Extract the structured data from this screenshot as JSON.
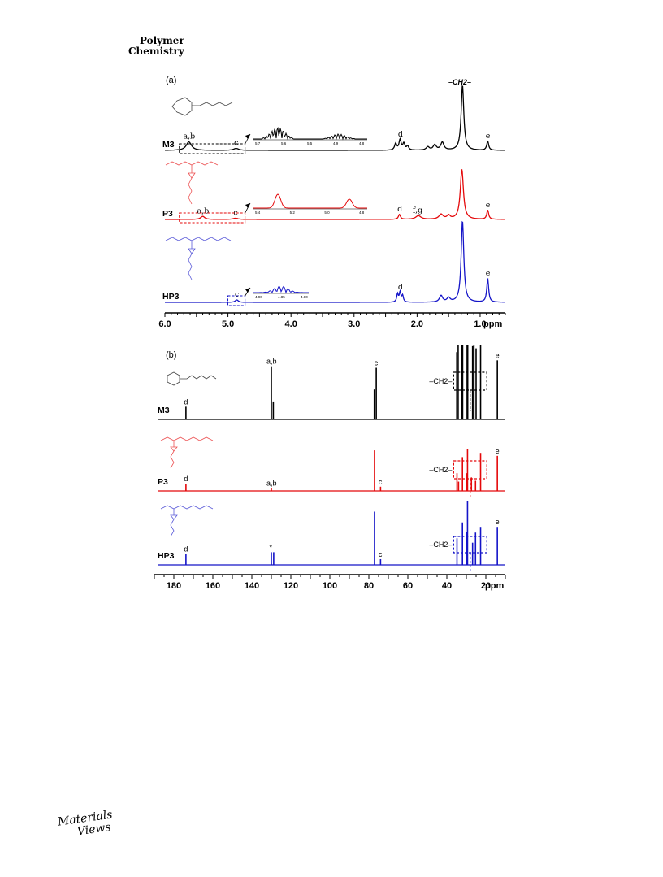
{
  "header": {
    "journal_line1": "Polymer",
    "journal_line2": "Chemistry"
  },
  "footer": {
    "logo_line1": "Materials",
    "logo_line2": "Views"
  },
  "colors": {
    "M3": "#000000",
    "P3": "#e4080a",
    "HP3": "#1414c8"
  },
  "chart_data": [
    {
      "panel": "(a)",
      "type": "line",
      "subtype": "1H NMR spectra",
      "x_axis": {
        "unit_label": "ppm",
        "range": [
          6.0,
          0.6
        ],
        "ticks": [
          "6.0",
          "5.0",
          "4.0",
          "3.0",
          "2.0",
          "1.0"
        ],
        "tick_values": [
          6.0,
          5.0,
          4.0,
          3.0,
          2.0,
          1.0
        ]
      },
      "top_label": "–CH2–",
      "series": [
        {
          "name": "M3",
          "color": "#000000",
          "peaks": [
            {
              "x": 5.62,
              "h": 0.13,
              "w": 0.05,
              "label": "a,b"
            },
            {
              "x": 4.87,
              "h": 0.03,
              "w": 0.05,
              "label": "c"
            },
            {
              "x": 2.34,
              "h": 0.1,
              "w": 0.02
            },
            {
              "x": 2.27,
              "h": 0.16,
              "w": 0.02,
              "label": "d"
            },
            {
              "x": 2.21,
              "h": 0.1,
              "w": 0.02
            },
            {
              "x": 2.15,
              "h": 0.06,
              "w": 0.02
            },
            {
              "x": 1.83,
              "h": 0.05,
              "w": 0.03
            },
            {
              "x": 1.72,
              "h": 0.08,
              "w": 0.03
            },
            {
              "x": 1.6,
              "h": 0.12,
              "w": 0.03
            },
            {
              "x": 1.28,
              "h": 1.0,
              "w": 0.025
            },
            {
              "x": 0.88,
              "h": 0.14,
              "w": 0.018,
              "label": "e"
            }
          ],
          "inset": {
            "ticks": [
              "5.7",
              "5.6",
              "5.5",
              "4.9",
              "4.8"
            ]
          }
        },
        {
          "name": "P3",
          "color": "#e4080a",
          "peaks": [
            {
              "x": 5.4,
              "h": 0.05,
              "w": 0.04,
              "label": "a,b"
            },
            {
              "x": 4.88,
              "h": 0.02,
              "w": 0.05,
              "label": "c"
            },
            {
              "x": 2.28,
              "h": 0.08,
              "w": 0.02,
              "label": "d"
            },
            {
              "x": 1.98,
              "h": 0.06,
              "w": 0.05,
              "label": "f,g"
            },
            {
              "x": 1.62,
              "h": 0.08,
              "w": 0.04
            },
            {
              "x": 1.5,
              "h": 0.06,
              "w": 0.03
            },
            {
              "x": 1.29,
              "h": 0.82,
              "w": 0.03
            },
            {
              "x": 0.88,
              "h": 0.15,
              "w": 0.018,
              "label": "e"
            }
          ],
          "inset": {
            "ticks": [
              "5.4",
              "5.2",
              "5.0",
              "4.8"
            ]
          }
        },
        {
          "name": "HP3",
          "color": "#1414c8",
          "peaks": [
            {
              "x": 4.86,
              "h": 0.03,
              "w": 0.03,
              "label": "c"
            },
            {
              "x": 2.31,
              "h": 0.1,
              "w": 0.015
            },
            {
              "x": 2.27,
              "h": 0.12,
              "w": 0.015,
              "label": "d"
            },
            {
              "x": 2.23,
              "h": 0.08,
              "w": 0.015
            },
            {
              "x": 1.62,
              "h": 0.08,
              "w": 0.03
            },
            {
              "x": 1.5,
              "h": 0.05,
              "w": 0.03
            },
            {
              "x": 1.28,
              "h": 1.0,
              "w": 0.025
            },
            {
              "x": 0.88,
              "h": 0.29,
              "w": 0.018,
              "label": "e"
            }
          ],
          "inset": {
            "ticks": [
              "4.90",
              "4.85",
              "4.80"
            ]
          }
        }
      ]
    },
    {
      "panel": "(b)",
      "type": "line",
      "subtype": "13C NMR spectra",
      "x_axis": {
        "unit_label": "ppm",
        "range": [
          190,
          10
        ],
        "ticks": [
          "180",
          "160",
          "140",
          "120",
          "100",
          "80",
          "60",
          "40",
          "20"
        ],
        "tick_values": [
          180,
          160,
          140,
          120,
          100,
          80,
          60,
          40,
          20
        ]
      },
      "ch2_label": "–CH2–",
      "series": [
        {
          "name": "M3",
          "color": "#000000",
          "peaks": [
            {
              "x": 173.8,
              "h": 0.17,
              "label": "d"
            },
            {
              "x": 130.0,
              "h": 0.71,
              "label": "a,b"
            },
            {
              "x": 129.0,
              "h": 0.24
            },
            {
              "x": 77.2,
              "h": 0.4
            },
            {
              "x": 76.2,
              "h": 0.69,
              "label": "c"
            },
            {
              "x": 34.9,
              "h": 0.9
            },
            {
              "x": 34.2,
              "h": 1.0
            },
            {
              "x": 32.4,
              "h": 1.0
            },
            {
              "x": 31.9,
              "h": 1.0
            },
            {
              "x": 30.0,
              "h": 1.0
            },
            {
              "x": 29.3,
              "h": 1.0
            },
            {
              "x": 26.8,
              "h": 0.98
            },
            {
              "x": 26.1,
              "h": 1.0
            },
            {
              "x": 25.0,
              "h": 0.95
            },
            {
              "x": 22.7,
              "h": 1.0
            },
            {
              "x": 14.1,
              "h": 0.79,
              "label": "e"
            }
          ]
        },
        {
          "name": "P3",
          "color": "#e4080a",
          "peaks": [
            {
              "x": 173.8,
              "h": 0.17,
              "label": "d"
            },
            {
              "x": 130.0,
              "h": 0.07,
              "label": "a,b"
            },
            {
              "x": 77.1,
              "h": 0.96
            },
            {
              "x": 74.0,
              "h": 0.1,
              "label": "c"
            },
            {
              "x": 34.8,
              "h": 0.42
            },
            {
              "x": 34.0,
              "h": 0.22
            },
            {
              "x": 32.0,
              "h": 0.8
            },
            {
              "x": 29.9,
              "h": 0.42
            },
            {
              "x": 29.4,
              "h": 1.0
            },
            {
              "x": 27.4,
              "h": 0.32
            },
            {
              "x": 25.3,
              "h": 0.24
            },
            {
              "x": 22.7,
              "h": 0.9
            },
            {
              "x": 14.1,
              "h": 0.83,
              "label": "e"
            }
          ]
        },
        {
          "name": "HP3",
          "color": "#1414c8",
          "peaks": [
            {
              "x": 173.8,
              "h": 0.17,
              "label": "d"
            },
            {
              "x": 130.0,
              "h": 0.2,
              "label": "*"
            },
            {
              "x": 128.8,
              "h": 0.2
            },
            {
              "x": 77.1,
              "h": 0.84
            },
            {
              "x": 74.0,
              "h": 0.09,
              "label": "c"
            },
            {
              "x": 34.8,
              "h": 0.42
            },
            {
              "x": 32.0,
              "h": 0.67
            },
            {
              "x": 29.8,
              "h": 0.52
            },
            {
              "x": 29.4,
              "h": 1.0
            },
            {
              "x": 26.8,
              "h": 0.35
            },
            {
              "x": 25.3,
              "h": 0.51
            },
            {
              "x": 22.7,
              "h": 0.6
            },
            {
              "x": 14.1,
              "h": 0.6,
              "label": "e"
            }
          ]
        }
      ]
    }
  ]
}
